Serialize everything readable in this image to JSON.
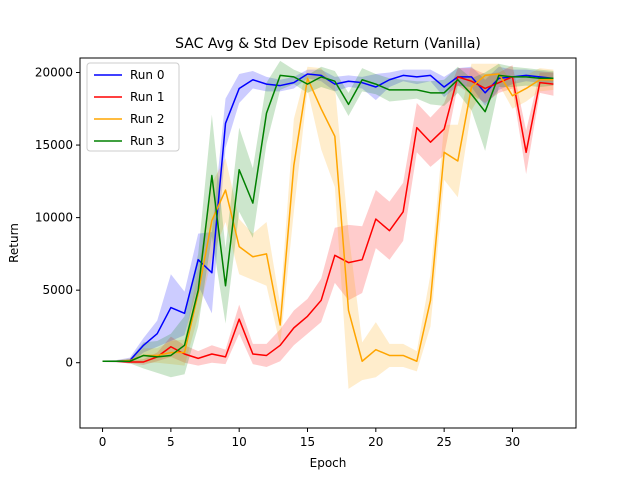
{
  "chart_data": {
    "type": "line",
    "title": "SAC Avg & Std Dev Episode Return (Vanilla)",
    "xlabel": "Epoch",
    "ylabel": "Return",
    "xlim": [
      -1.65,
      34.65
    ],
    "ylim": [
      -4500,
      21000
    ],
    "xticks": [
      0,
      5,
      10,
      15,
      20,
      25,
      30
    ],
    "yticks": [
      0,
      5000,
      10000,
      15000,
      20000
    ],
    "legend_position": "upper left",
    "grid": false,
    "x": [
      0,
      1,
      2,
      3,
      4,
      5,
      6,
      7,
      8,
      9,
      10,
      11,
      12,
      13,
      14,
      15,
      16,
      17,
      18,
      19,
      20,
      21,
      22,
      23,
      24,
      25,
      26,
      27,
      28,
      29,
      30,
      31,
      32,
      33
    ],
    "series": [
      {
        "name": "Run 0",
        "color": "#0000ff",
        "mean": [
          100,
          100,
          150,
          1200,
          2000,
          3800,
          3400,
          7100,
          6200,
          16500,
          18900,
          19500,
          19200,
          19100,
          19300,
          19900,
          19800,
          19200,
          19400,
          19300,
          19000,
          19500,
          19800,
          19700,
          19800,
          19000,
          19700,
          19700,
          18600,
          19600,
          19700,
          19800,
          19700,
          19600
        ],
        "std": [
          50,
          80,
          200,
          500,
          900,
          2300,
          1500,
          1800,
          2800,
          1700,
          1000,
          600,
          500,
          400,
          400,
          300,
          400,
          500,
          400,
          400,
          900,
          500,
          400,
          500,
          400,
          700,
          600,
          700,
          900,
          800,
          500,
          400,
          400,
          400
        ]
      },
      {
        "name": "Run 1",
        "color": "#ff0000",
        "mean": [
          100,
          100,
          50,
          50,
          400,
          1100,
          600,
          300,
          600,
          400,
          3000,
          600,
          500,
          1200,
          2400,
          3200,
          4300,
          7400,
          6900,
          7100,
          9900,
          9100,
          10400,
          16200,
          15200,
          16100,
          19700,
          19400,
          18900,
          19300,
          19700,
          14500,
          19300,
          19200
        ],
        "std": [
          50,
          50,
          100,
          200,
          300,
          700,
          600,
          500,
          600,
          500,
          1000,
          700,
          800,
          1100,
          1200,
          1200,
          1500,
          1900,
          2600,
          2300,
          2000,
          2000,
          2000,
          1700,
          1700,
          1800,
          600,
          900,
          1000,
          700,
          800,
          1500,
          700,
          800
        ],
        "label_note": ""
      },
      {
        "name": "Run 2",
        "color": "#ffa500",
        "mean": [
          100,
          100,
          150,
          500,
          500,
          700,
          700,
          4800,
          9800,
          11900,
          8000,
          7300,
          7500,
          2600,
          13600,
          19600,
          17500,
          15600,
          3600,
          100,
          900,
          500,
          500,
          100,
          4300,
          14500,
          13900,
          19000,
          19800,
          19900,
          18400,
          18900,
          19500,
          19500
        ],
        "std": [
          50,
          80,
          150,
          500,
          500,
          800,
          900,
          1600,
          2600,
          2200,
          1900,
          1600,
          2200,
          1400,
          3200,
          800,
          2800,
          3500,
          5400,
          1300,
          1900,
          800,
          800,
          700,
          1800,
          1900,
          2500,
          1600,
          800,
          700,
          900,
          900,
          800,
          700
        ]
      },
      {
        "name": "Run 3",
        "color": "#008000",
        "mean": [
          100,
          100,
          100,
          500,
          400,
          500,
          1200,
          5000,
          12900,
          5300,
          13300,
          11000,
          17200,
          19800,
          19700,
          19200,
          19700,
          19400,
          17800,
          19500,
          19200,
          18800,
          18800,
          18800,
          18600,
          18600,
          19500,
          18500,
          17300,
          19800,
          19700,
          19700,
          19600,
          19600
        ],
        "std": [
          50,
          50,
          150,
          900,
          1100,
          1500,
          2000,
          2500,
          4200,
          2600,
          2900,
          2400,
          2100,
          1000,
          500,
          600,
          700,
          700,
          800,
          800,
          700,
          800,
          700,
          600,
          800,
          900,
          900,
          1100,
          2700,
          800,
          700,
          600,
          600,
          500
        ]
      }
    ]
  }
}
